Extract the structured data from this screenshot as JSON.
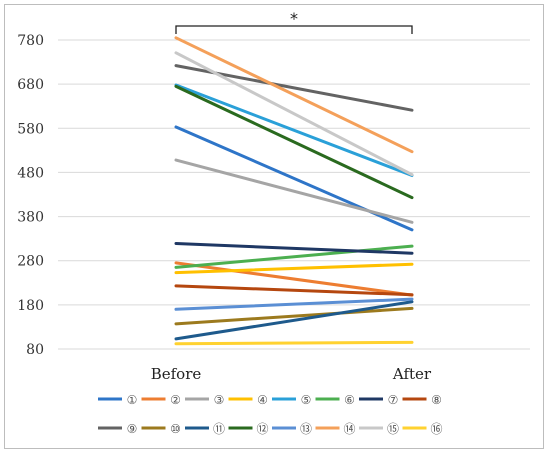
{
  "chart_data": {
    "type": "line",
    "categories": [
      "Before",
      "After"
    ],
    "ylim": [
      80,
      800
    ],
    "yticks": [
      80,
      180,
      280,
      380,
      480,
      580,
      680,
      780
    ],
    "grid": true,
    "legend_position": "bottom",
    "significance": "*",
    "series": [
      {
        "name": "①",
        "color": "#2E75C8",
        "values": [
          583,
          350
        ]
      },
      {
        "name": "②",
        "color": "#ED7D31",
        "values": [
          275,
          202
        ]
      },
      {
        "name": "③",
        "color": "#A5A5A5",
        "values": [
          508,
          367
        ]
      },
      {
        "name": "④",
        "color": "#FFC000",
        "values": [
          253,
          272
        ]
      },
      {
        "name": "⑤",
        "color": "#2AA0D8",
        "values": [
          678,
          473
        ]
      },
      {
        "name": "⑥",
        "color": "#4CAF50",
        "values": [
          265,
          313
        ]
      },
      {
        "name": "⑦",
        "color": "#1F3864",
        "values": [
          319,
          297
        ]
      },
      {
        "name": "⑧",
        "color": "#B5470F",
        "values": [
          223,
          203
        ]
      },
      {
        "name": "⑨",
        "color": "#636363",
        "values": [
          722,
          621
        ]
      },
      {
        "name": "⑩",
        "color": "#9C7A1E",
        "values": [
          137,
          172
        ]
      },
      {
        "name": "⑪",
        "color": "#1E5A8C",
        "values": [
          103,
          187
        ]
      },
      {
        "name": "⑫",
        "color": "#2A6A1F",
        "values": [
          675,
          423
        ]
      },
      {
        "name": "⑬",
        "color": "#5B8FD4",
        "values": [
          170,
          193
        ]
      },
      {
        "name": "⑭",
        "color": "#F4A05A",
        "values": [
          785,
          527
        ]
      },
      {
        "name": "⑮",
        "color": "#C8C8C8",
        "values": [
          751,
          475
        ]
      },
      {
        "name": "⑯",
        "color": "#FFD230",
        "values": [
          92,
          95
        ]
      }
    ]
  }
}
